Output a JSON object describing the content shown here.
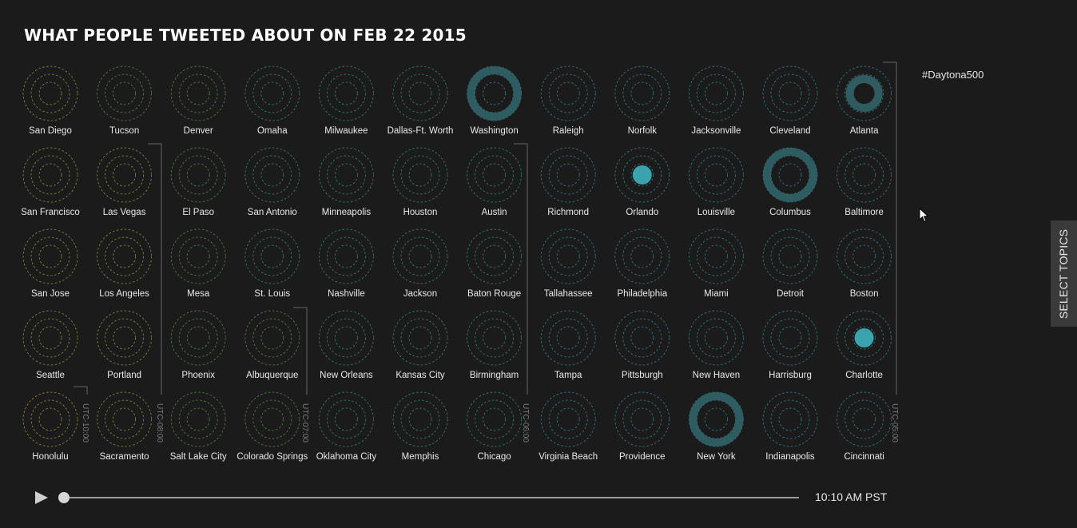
{
  "title": "WHAT PEOPLE TWEETED ABOUT ON FEB 22 2015",
  "topic": "#Daytona500",
  "select_topics_label": "SELECT TOPICS",
  "time_label": "10:10 AM PST",
  "playback_progress": 0,
  "colors": {
    "background": "#1b1b1b",
    "activity": "#3aa3ad",
    "activity_ring": "#2f5c61",
    "utc_lines": "#666666"
  },
  "timezone_groups": [
    {
      "label": "UTC-10:00",
      "color": "#b8a340"
    },
    {
      "label": "UTC-08:00",
      "color": "#9aaa3f"
    },
    {
      "label": "UTC-07:00",
      "color": "#5e9d4c"
    },
    {
      "label": "UTC-06:00",
      "color": "#3a9e7e"
    },
    {
      "label": "UTC-05:00",
      "color": "#3696a3"
    }
  ],
  "cities": [
    {
      "name": "San Diego",
      "row": 0,
      "col": 0,
      "zone": 1,
      "activity": "none"
    },
    {
      "name": "Tucson",
      "row": 0,
      "col": 1,
      "zone": 2,
      "activity": "none"
    },
    {
      "name": "Denver",
      "row": 0,
      "col": 2,
      "zone": 2,
      "activity": "none"
    },
    {
      "name": "Omaha",
      "row": 0,
      "col": 3,
      "zone": 3,
      "activity": "none"
    },
    {
      "name": "Milwaukee",
      "row": 0,
      "col": 4,
      "zone": 3,
      "activity": "none"
    },
    {
      "name": "Dallas-Ft. Worth",
      "row": 0,
      "col": 5,
      "zone": 3,
      "activity": "none"
    },
    {
      "name": "Washington",
      "row": 0,
      "col": 6,
      "zone": 4,
      "activity": "ring-outer"
    },
    {
      "name": "Raleigh",
      "row": 0,
      "col": 7,
      "zone": 4,
      "activity": "none"
    },
    {
      "name": "Norfolk",
      "row": 0,
      "col": 8,
      "zone": 4,
      "activity": "none"
    },
    {
      "name": "Jacksonville",
      "row": 0,
      "col": 9,
      "zone": 4,
      "activity": "none"
    },
    {
      "name": "Cleveland",
      "row": 0,
      "col": 10,
      "zone": 4,
      "activity": "none"
    },
    {
      "name": "Atlanta",
      "row": 0,
      "col": 11,
      "zone": 4,
      "activity": "ring-middle"
    },
    {
      "name": "San Francisco",
      "row": 1,
      "col": 0,
      "zone": 1,
      "activity": "none"
    },
    {
      "name": "Las Vegas",
      "row": 1,
      "col": 1,
      "zone": 1,
      "activity": "none"
    },
    {
      "name": "El Paso",
      "row": 1,
      "col": 2,
      "zone": 2,
      "activity": "none"
    },
    {
      "name": "San Antonio",
      "row": 1,
      "col": 3,
      "zone": 3,
      "activity": "none"
    },
    {
      "name": "Minneapolis",
      "row": 1,
      "col": 4,
      "zone": 3,
      "activity": "none"
    },
    {
      "name": "Houston",
      "row": 1,
      "col": 5,
      "zone": 3,
      "activity": "none"
    },
    {
      "name": "Austin",
      "row": 1,
      "col": 6,
      "zone": 3,
      "activity": "none"
    },
    {
      "name": "Richmond",
      "row": 1,
      "col": 7,
      "zone": 4,
      "activity": "none"
    },
    {
      "name": "Orlando",
      "row": 1,
      "col": 8,
      "zone": 4,
      "activity": "dot"
    },
    {
      "name": "Louisville",
      "row": 1,
      "col": 9,
      "zone": 4,
      "activity": "none"
    },
    {
      "name": "Columbus",
      "row": 1,
      "col": 10,
      "zone": 4,
      "activity": "ring-outer"
    },
    {
      "name": "Baltimore",
      "row": 1,
      "col": 11,
      "zone": 4,
      "activity": "none"
    },
    {
      "name": "San Jose",
      "row": 2,
      "col": 0,
      "zone": 1,
      "activity": "none"
    },
    {
      "name": "Los Angeles",
      "row": 2,
      "col": 1,
      "zone": 1,
      "activity": "none"
    },
    {
      "name": "Mesa",
      "row": 2,
      "col": 2,
      "zone": 2,
      "activity": "none"
    },
    {
      "name": "St. Louis",
      "row": 2,
      "col": 3,
      "zone": 3,
      "activity": "none"
    },
    {
      "name": "Nashville",
      "row": 2,
      "col": 4,
      "zone": 3,
      "activity": "none"
    },
    {
      "name": "Jackson",
      "row": 2,
      "col": 5,
      "zone": 3,
      "activity": "none"
    },
    {
      "name": "Baton Rouge",
      "row": 2,
      "col": 6,
      "zone": 3,
      "activity": "none"
    },
    {
      "name": "Tallahassee",
      "row": 2,
      "col": 7,
      "zone": 4,
      "activity": "none"
    },
    {
      "name": "Philadelphia",
      "row": 2,
      "col": 8,
      "zone": 4,
      "activity": "none"
    },
    {
      "name": "Miami",
      "row": 2,
      "col": 9,
      "zone": 4,
      "activity": "none"
    },
    {
      "name": "Detroit",
      "row": 2,
      "col": 10,
      "zone": 4,
      "activity": "none"
    },
    {
      "name": "Boston",
      "row": 2,
      "col": 11,
      "zone": 4,
      "activity": "none"
    },
    {
      "name": "Seattle",
      "row": 3,
      "col": 0,
      "zone": 1,
      "activity": "none"
    },
    {
      "name": "Portland",
      "row": 3,
      "col": 1,
      "zone": 1,
      "activity": "none"
    },
    {
      "name": "Phoenix",
      "row": 3,
      "col": 2,
      "zone": 2,
      "activity": "none"
    },
    {
      "name": "Albuquerque",
      "row": 3,
      "col": 3,
      "zone": 2,
      "activity": "none"
    },
    {
      "name": "New Orleans",
      "row": 3,
      "col": 4,
      "zone": 3,
      "activity": "none"
    },
    {
      "name": "Kansas City",
      "row": 3,
      "col": 5,
      "zone": 3,
      "activity": "none"
    },
    {
      "name": "Birmingham",
      "row": 3,
      "col": 6,
      "zone": 3,
      "activity": "none"
    },
    {
      "name": "Tampa",
      "row": 3,
      "col": 7,
      "zone": 4,
      "activity": "none"
    },
    {
      "name": "Pittsburgh",
      "row": 3,
      "col": 8,
      "zone": 4,
      "activity": "none"
    },
    {
      "name": "New Haven",
      "row": 3,
      "col": 9,
      "zone": 4,
      "activity": "none"
    },
    {
      "name": "Harrisburg",
      "row": 3,
      "col": 10,
      "zone": 4,
      "activity": "none"
    },
    {
      "name": "Charlotte",
      "row": 3,
      "col": 11,
      "zone": 4,
      "activity": "dot"
    },
    {
      "name": "Honolulu",
      "row": 4,
      "col": 0,
      "zone": 0,
      "activity": "none"
    },
    {
      "name": "Sacramento",
      "row": 4,
      "col": 1,
      "zone": 1,
      "activity": "none"
    },
    {
      "name": "Salt Lake City",
      "row": 4,
      "col": 2,
      "zone": 2,
      "activity": "none"
    },
    {
      "name": "Colorado Springs",
      "row": 4,
      "col": 3,
      "zone": 2,
      "activity": "none"
    },
    {
      "name": "Oklahoma City",
      "row": 4,
      "col": 4,
      "zone": 3,
      "activity": "none"
    },
    {
      "name": "Memphis",
      "row": 4,
      "col": 5,
      "zone": 3,
      "activity": "none"
    },
    {
      "name": "Chicago",
      "row": 4,
      "col": 6,
      "zone": 3,
      "activity": "none"
    },
    {
      "name": "Virginia Beach",
      "row": 4,
      "col": 7,
      "zone": 4,
      "activity": "none"
    },
    {
      "name": "Providence",
      "row": 4,
      "col": 8,
      "zone": 4,
      "activity": "none"
    },
    {
      "name": "New York",
      "row": 4,
      "col": 9,
      "zone": 4,
      "activity": "ring-outer"
    },
    {
      "name": "Indianapolis",
      "row": 4,
      "col": 10,
      "zone": 4,
      "activity": "none"
    },
    {
      "name": "Cincinnati",
      "row": 4,
      "col": 11,
      "zone": 4,
      "activity": "none"
    }
  ]
}
